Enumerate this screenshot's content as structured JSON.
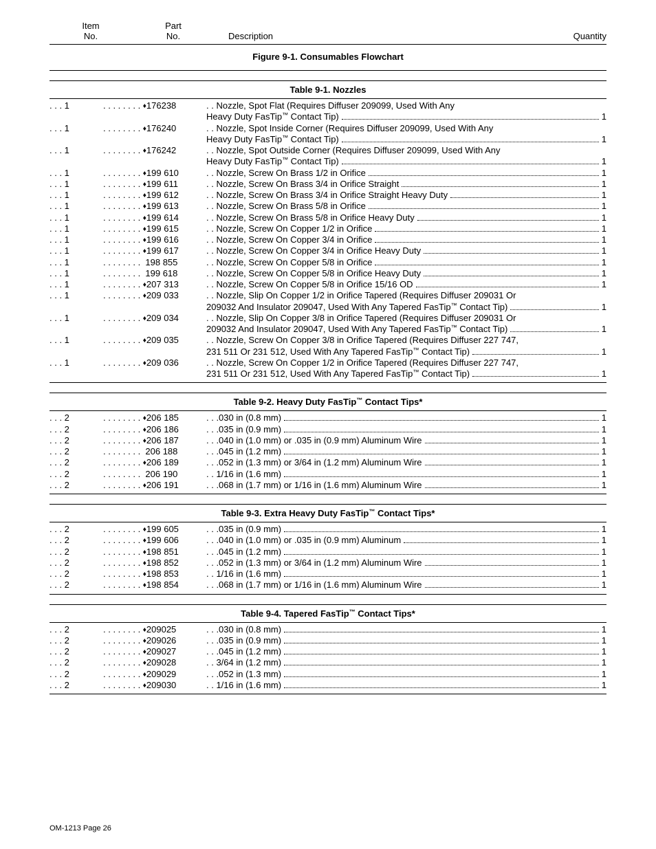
{
  "headers": {
    "item1": "Item",
    "item2": "No.",
    "part1": "Part",
    "part2": "No.",
    "desc": "Description",
    "qty": "Quantity"
  },
  "figure_title": "Figure 9-1. Consumables Flowchart",
  "footer": "OM-1213 Page 26",
  "glyphs": {
    "dots3": ". . . ",
    "pad": " ",
    "dotleader": ". . . . . . . . .",
    "diamond": "♦"
  },
  "tables": [
    {
      "title": "Table 9-1. Nozzles",
      "rows": [
        {
          "item": "1",
          "diamond": true,
          "part": "176238",
          "desc": [
            "Nozzle, Spot Flat (Requires Diffuser 209099, Used With Any",
            "Heavy Duty FasTip™ Contact Tip)"
          ],
          "qty": "1"
        },
        {
          "item": "1",
          "diamond": true,
          "part": "176240",
          "desc": [
            "Nozzle, Spot Inside Corner (Requires Diffuser 209099, Used With Any",
            "Heavy Duty FasTip™ Contact Tip)"
          ],
          "qty": "1"
        },
        {
          "item": "1",
          "diamond": true,
          "part": "176242",
          "desc": [
            "Nozzle, Spot Outside Corner (Requires Diffuser 209099, Used With Any",
            "Heavy Duty FasTip™ Contact Tip)"
          ],
          "qty": "1"
        },
        {
          "item": "1",
          "diamond": true,
          "part": "199 610",
          "desc": [
            "Nozzle, Screw On Brass 1/2 in Orifice"
          ],
          "qty": "1"
        },
        {
          "item": "1",
          "diamond": true,
          "part": "199 611",
          "desc": [
            "Nozzle, Screw On Brass 3/4 in Orifice Straight"
          ],
          "qty": "1"
        },
        {
          "item": "1",
          "diamond": true,
          "part": "199 612",
          "desc": [
            "Nozzle, Screw On Brass 3/4 in Orifice Straight Heavy Duty"
          ],
          "qty": "1"
        },
        {
          "item": "1",
          "diamond": true,
          "part": "199 613",
          "desc": [
            "Nozzle, Screw On Brass 5/8 in Orifice"
          ],
          "qty": "1"
        },
        {
          "item": "1",
          "diamond": true,
          "part": "199 614",
          "desc": [
            "Nozzle, Screw On Brass 5/8 in Orifice Heavy Duty"
          ],
          "qty": "1"
        },
        {
          "item": "1",
          "diamond": true,
          "part": "199 615",
          "desc": [
            "Nozzle, Screw On Copper 1/2 in Orifice"
          ],
          "qty": "1"
        },
        {
          "item": "1",
          "diamond": true,
          "part": "199 616",
          "desc": [
            "Nozzle, Screw On Copper 3/4 in Orifice"
          ],
          "qty": "1"
        },
        {
          "item": "1",
          "diamond": true,
          "part": "199 617",
          "desc": [
            "Nozzle, Screw On Copper 3/4 in Orifice Heavy Duty"
          ],
          "qty": "1"
        },
        {
          "item": "1",
          "diamond": false,
          "part": "198 855",
          "desc": [
            "Nozzle, Screw On Copper 5/8 in Orifice"
          ],
          "qty": "1"
        },
        {
          "item": "1",
          "diamond": false,
          "part": "199 618",
          "desc": [
            "Nozzle, Screw On Copper 5/8 in Orifice Heavy Duty"
          ],
          "qty": "1"
        },
        {
          "item": "1",
          "diamond": true,
          "part": "207 313",
          "desc": [
            "Nozzle, Screw On Copper 5/8 in Orifice 15/16 OD"
          ],
          "qty": "1"
        },
        {
          "item": "1",
          "diamond": true,
          "part": "209 033",
          "desc": [
            "Nozzle, Slip On Copper 1/2 in Orifice Tapered (Requires Diffuser 209031 Or",
            "209032 And Insulator 209047, Used With Any Tapered FasTip™ Contact Tip)"
          ],
          "qty": "1"
        },
        {
          "item": "1",
          "diamond": true,
          "part": "209 034",
          "desc": [
            "Nozzle, Slip On Copper 3/8 in Orifice Tapered (Requires Diffuser 209031 Or",
            "209032 And Insulator 209047, Used With Any Tapered FasTip™ Contact Tip)"
          ],
          "qty": "1"
        },
        {
          "item": "1",
          "diamond": true,
          "part": "209 035",
          "desc": [
            "Nozzle, Screw On Copper 3/8 in Orifice Tapered (Requires Diffuser 227 747,",
            "231 511 Or 231 512, Used With Any Tapered FasTip™ Contact Tip)"
          ],
          "qty": "1"
        },
        {
          "item": "1",
          "diamond": true,
          "part": "209 036",
          "desc": [
            "Nozzle, Screw On Copper 1/2 in Orifice Tapered (Requires Diffuser 227 747,",
            "231 511 Or 231 512, Used With Any Tapered FasTip™ Contact Tip)"
          ],
          "qty": "1"
        }
      ]
    },
    {
      "title": "Table 9-2. Heavy Duty FasTip™ Contact Tips*",
      "rows": [
        {
          "item": "2",
          "diamond": true,
          "part": "206 185",
          "desc": [
            ".030 in (0.8 mm)"
          ],
          "qty": "1"
        },
        {
          "item": "2",
          "diamond": true,
          "part": "206 186",
          "desc": [
            ".035 in (0.9 mm)"
          ],
          "qty": "1"
        },
        {
          "item": "2",
          "diamond": true,
          "part": "206 187",
          "desc": [
            ".040 in (1.0 mm) or .035 in (0.9 mm) Aluminum Wire"
          ],
          "qty": "1"
        },
        {
          "item": "2",
          "diamond": false,
          "part": "206 188",
          "desc": [
            ".045 in (1.2 mm)"
          ],
          "qty": "1"
        },
        {
          "item": "2",
          "diamond": true,
          "part": "206 189",
          "desc": [
            ".052 in (1.3 mm) or 3/64 in (1.2 mm) Aluminum Wire"
          ],
          "qty": "1"
        },
        {
          "item": "2",
          "diamond": false,
          "part": "206 190",
          "desc": [
            "1/16 in (1.6 mm)"
          ],
          "qty": "1"
        },
        {
          "item": "2",
          "diamond": true,
          "part": "206 191",
          "desc": [
            ".068 in (1.7 mm) or 1/16 in (1.6 mm) Aluminum Wire"
          ],
          "qty": "1"
        }
      ]
    },
    {
      "title": "Table 9-3. Extra Heavy Duty FasTip™ Contact Tips*",
      "rows": [
        {
          "item": "2",
          "diamond": true,
          "part": "199 605",
          "desc": [
            ".035 in (0.9 mm)"
          ],
          "qty": "1"
        },
        {
          "item": "2",
          "diamond": true,
          "part": "199 606",
          "desc": [
            ".040 in (1.0 mm) or .035 in (0.9 mm) Aluminum"
          ],
          "qty": "1"
        },
        {
          "item": "2",
          "diamond": true,
          "part": "198 851",
          "desc": [
            ".045 in (1.2 mm)"
          ],
          "qty": "1"
        },
        {
          "item": "2",
          "diamond": true,
          "part": "198 852",
          "desc": [
            ".052 in (1.3 mm) or 3/64 in (1.2 mm) Aluminum Wire"
          ],
          "qty": "1"
        },
        {
          "item": "2",
          "diamond": true,
          "part": "198 853",
          "desc": [
            "1/16 in (1.6 mm)"
          ],
          "qty": "1"
        },
        {
          "item": "2",
          "diamond": true,
          "part": "198 854",
          "desc": [
            ".068 in (1.7 mm) or 1/16 in (1.6 mm) Aluminum Wire"
          ],
          "qty": "1"
        }
      ]
    },
    {
      "title": "Table 9-4. Tapered FasTip™ Contact Tips*",
      "rows": [
        {
          "item": "2",
          "diamond": true,
          "part": "209025",
          "desc": [
            ".030 in (0.8 mm)"
          ],
          "qty": "1"
        },
        {
          "item": "2",
          "diamond": true,
          "part": "209026",
          "desc": [
            ".035 in (0.9 mm)"
          ],
          "qty": "1"
        },
        {
          "item": "2",
          "diamond": true,
          "part": "209027",
          "desc": [
            ".045 in (1.2 mm)"
          ],
          "qty": "1"
        },
        {
          "item": "2",
          "diamond": true,
          "part": "209028",
          "desc": [
            "3/64 in (1.2 mm)"
          ],
          "qty": "1"
        },
        {
          "item": "2",
          "diamond": true,
          "part": "209029",
          "desc": [
            ".052 in (1.3 mm)"
          ],
          "qty": "1"
        },
        {
          "item": "2",
          "diamond": true,
          "part": "209030",
          "desc": [
            "1/16 in (1.6 mm)"
          ],
          "qty": "1"
        }
      ]
    }
  ]
}
